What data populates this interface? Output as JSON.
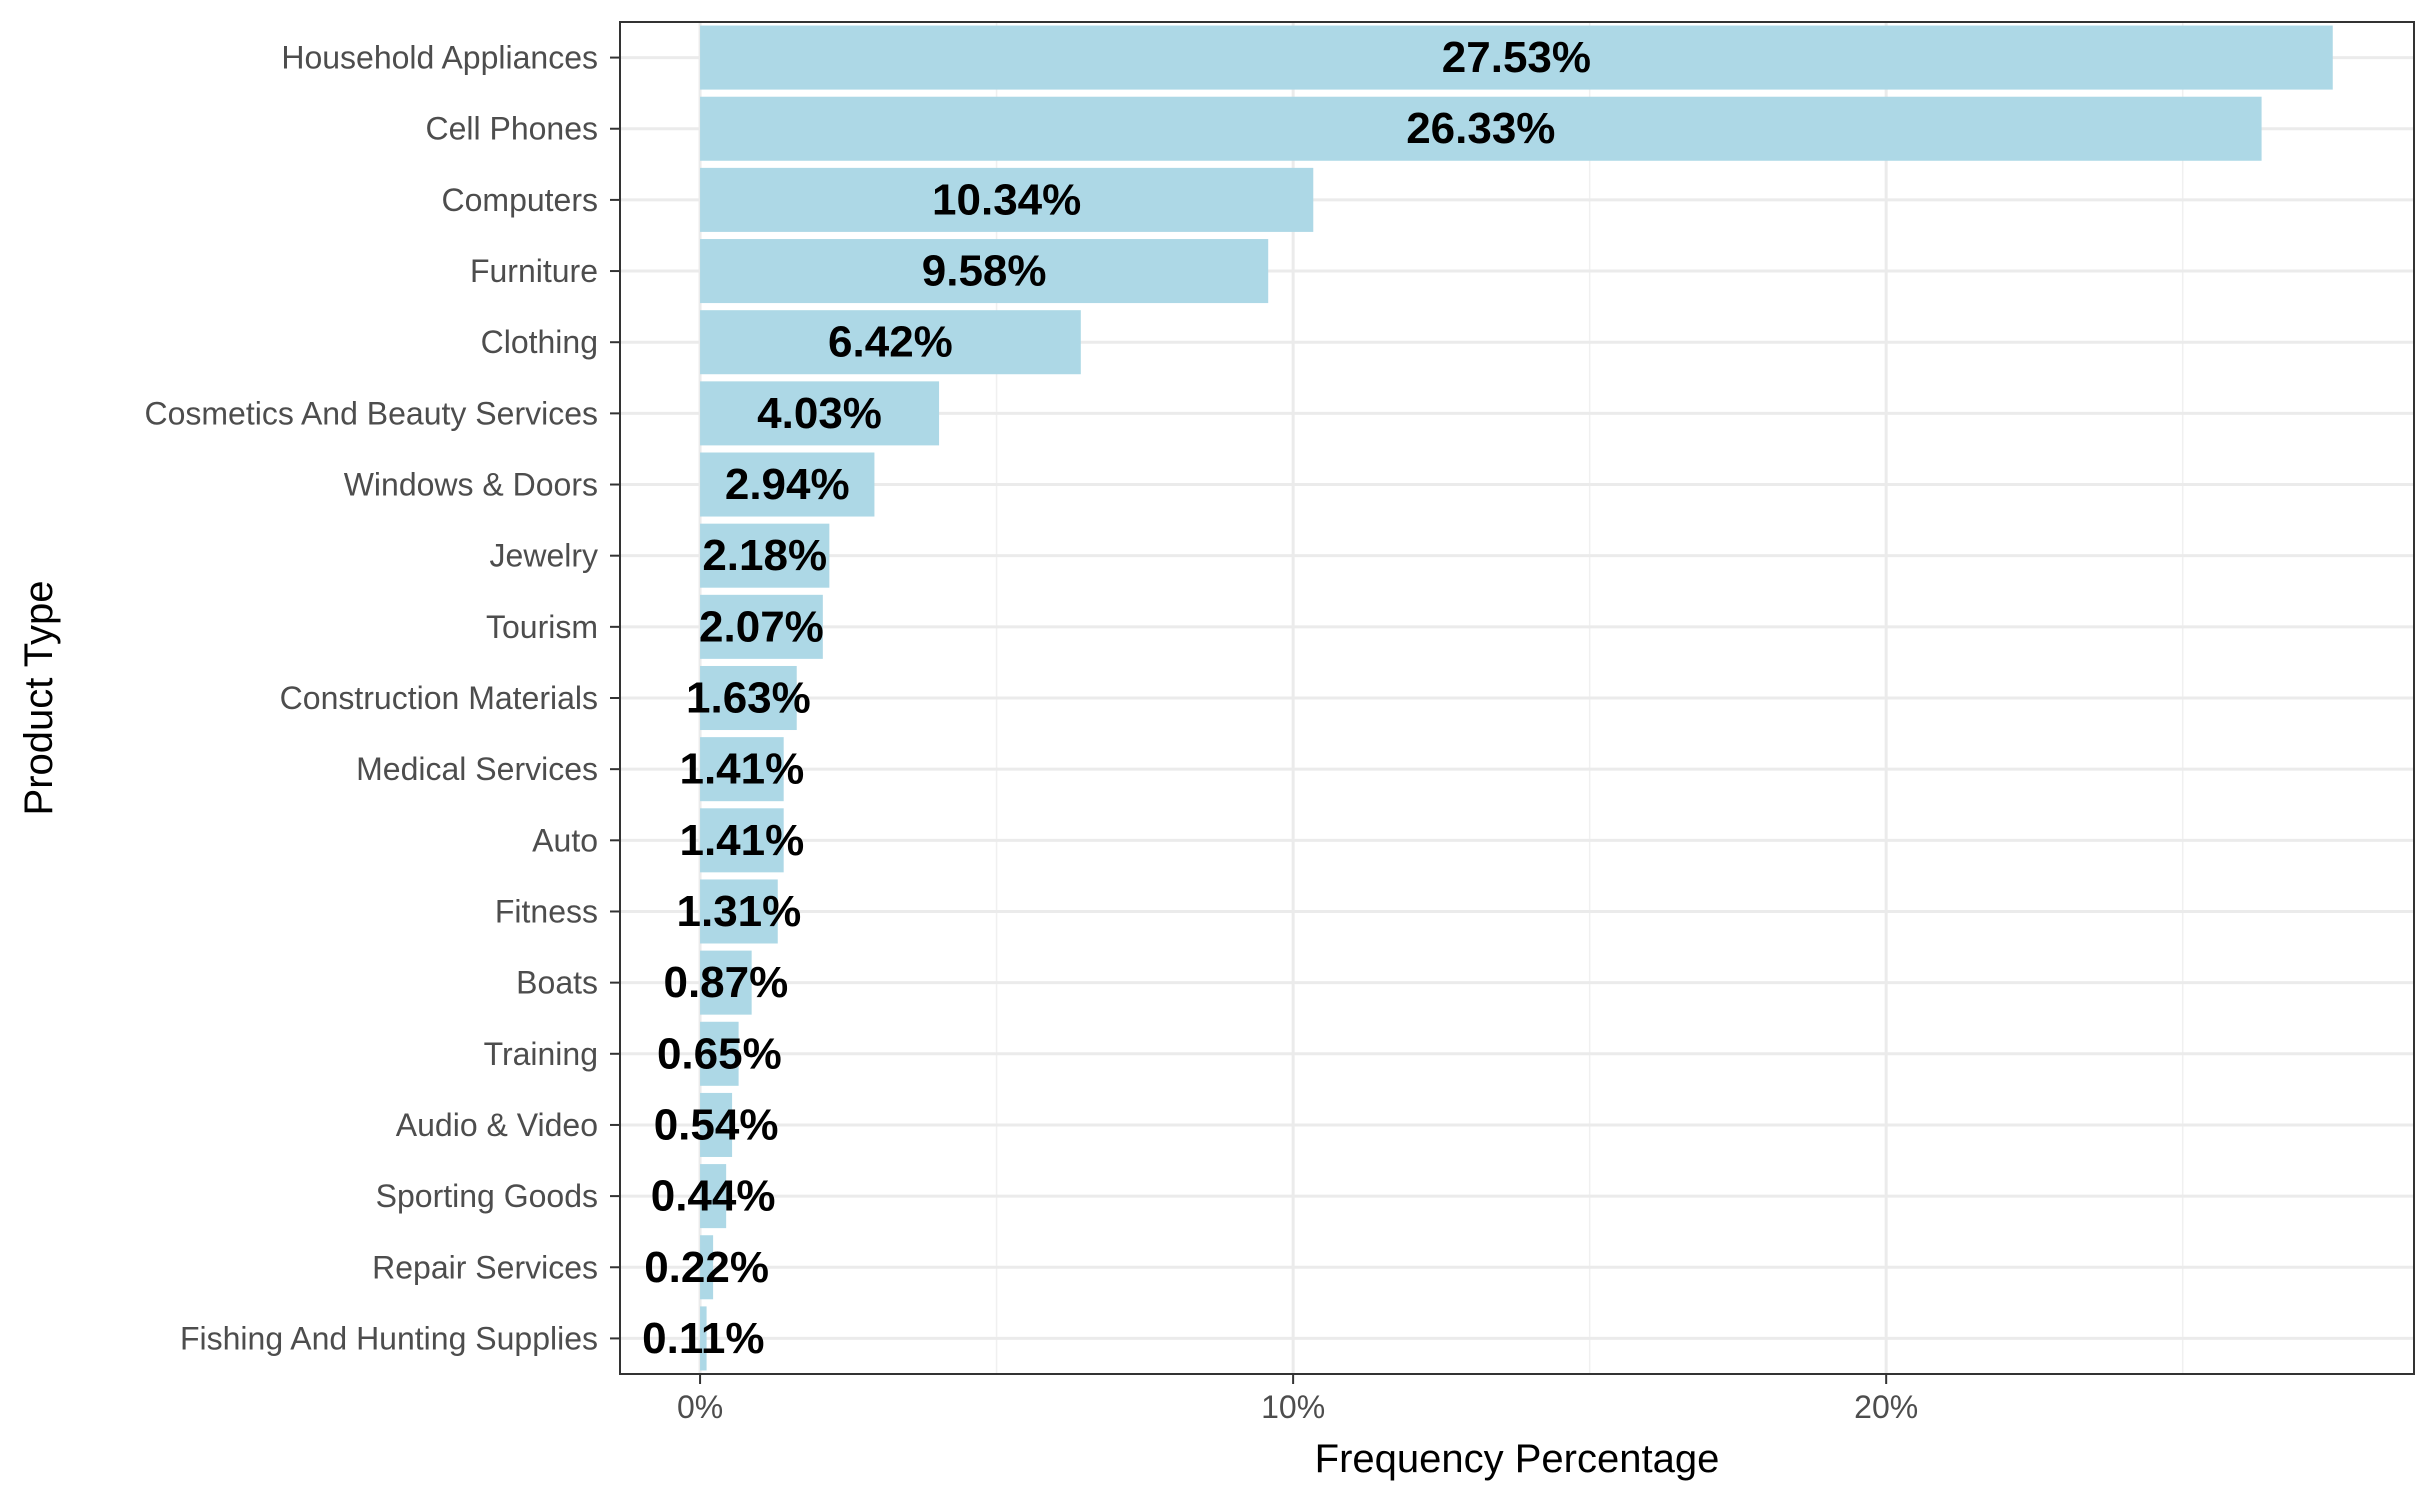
{
  "chart_data": {
    "type": "bar",
    "orientation": "horizontal",
    "xlabel": "Frequency Percentage",
    "ylabel": "Product Type",
    "xlim": [
      -1.35,
      28.9
    ],
    "x_ticks": [
      0,
      10,
      20
    ],
    "x_tick_labels": [
      "0%",
      "10%",
      "20%"
    ],
    "grid": true,
    "bar_color": "#add8e6",
    "categories": [
      "Household Appliances",
      "Cell Phones",
      "Computers",
      "Furniture",
      "Clothing",
      "Cosmetics And Beauty Services",
      "Windows & Doors",
      "Jewelry",
      "Tourism",
      "Construction Materials",
      "Medical Services",
      "Auto",
      "Fitness",
      "Boats",
      "Training",
      "Audio & Video",
      "Sporting Goods",
      "Repair Services",
      "Fishing And Hunting Supplies"
    ],
    "values": [
      27.53,
      26.33,
      10.34,
      9.58,
      6.42,
      4.03,
      2.94,
      2.18,
      2.07,
      1.63,
      1.41,
      1.41,
      1.31,
      0.87,
      0.65,
      0.54,
      0.44,
      0.22,
      0.11
    ],
    "labels": [
      "27.53%",
      "26.33%",
      "10.34%",
      "9.58%",
      "6.42%",
      "4.03%",
      "2.94%",
      "2.18%",
      "2.07%",
      "1.63%",
      "1.41%",
      "1.41%",
      "1.31%",
      "0.87%",
      "0.65%",
      "0.54%",
      "0.44%",
      "0.22%",
      "0.11%"
    ]
  }
}
